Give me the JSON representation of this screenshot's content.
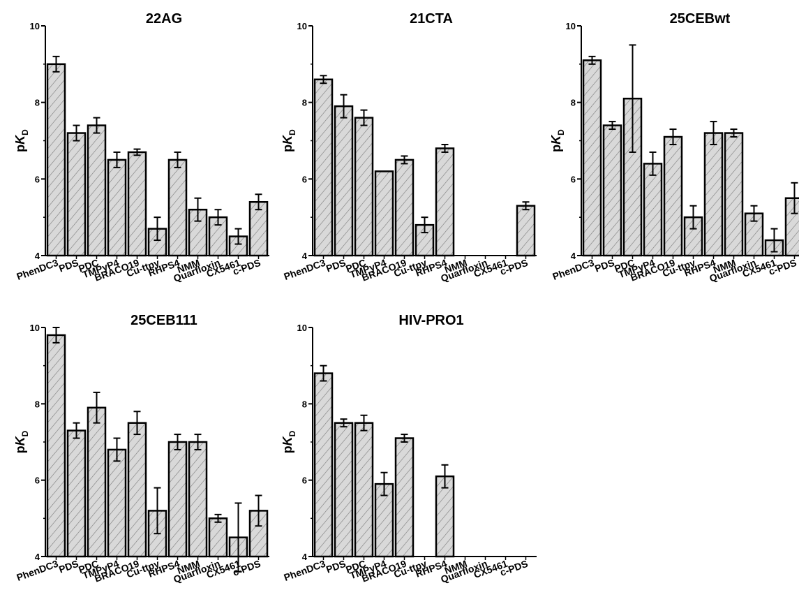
{
  "colors": {
    "bar_fill": "#d9d9d9",
    "hatch": "#7a7a7a",
    "stroke": "#000000"
  },
  "chart_data": [
    {
      "type": "bar",
      "title": "22AG",
      "ylabel": "pKD",
      "ylim": [
        4,
        10
      ],
      "yticks": [
        "4",
        "6",
        "8",
        "10"
      ],
      "categories": [
        "PhenDC3",
        "PDS",
        "PDC",
        "TMPyP4",
        "BRACO19",
        "Cu-ttpy",
        "RHPS4",
        "NMM",
        "Quarfloxin",
        "CX5461",
        "c-PDS"
      ],
      "values": [
        9.0,
        7.2,
        7.4,
        6.5,
        6.7,
        4.7,
        6.5,
        5.2,
        5.0,
        4.5,
        5.4
      ],
      "errors": [
        0.2,
        0.2,
        0.2,
        0.2,
        0.08,
        0.3,
        0.2,
        0.3,
        0.2,
        0.2,
        0.2
      ]
    },
    {
      "type": "bar",
      "title": "21CTA",
      "ylabel": "pKD",
      "ylim": [
        4,
        10
      ],
      "yticks": [
        "4",
        "6",
        "8",
        "10"
      ],
      "categories": [
        "PhenDC3",
        "PDS",
        "PDC",
        "TMPyP4",
        "BRACO19",
        "Cu-ttpy",
        "RHPS4",
        "NMM",
        "Quarfloxin",
        "CX5461",
        "c-PDS"
      ],
      "values": [
        8.6,
        7.9,
        7.6,
        6.2,
        6.5,
        4.8,
        6.8,
        4,
        4,
        4,
        5.3
      ],
      "errors": [
        0.1,
        0.3,
        0.2,
        0,
        0.1,
        0.2,
        0.1,
        0,
        0,
        0,
        0.1
      ]
    },
    {
      "type": "bar",
      "title": "25CEBwt",
      "ylabel": "pKD",
      "ylim": [
        4,
        10
      ],
      "yticks": [
        "4",
        "6",
        "8",
        "10"
      ],
      "categories": [
        "PhenDC3",
        "PDS",
        "PDC",
        "TMPyP4",
        "BRACO19",
        "Cu-ttpy",
        "RHPS4",
        "NMM",
        "Quarfloxin",
        "CX5461",
        "c-PDS"
      ],
      "values": [
        9.1,
        7.4,
        8.1,
        6.4,
        7.1,
        5.0,
        7.2,
        7.2,
        5.1,
        4.4,
        5.5
      ],
      "errors": [
        0.1,
        0.1,
        1.4,
        0.3,
        0.2,
        0.3,
        0.3,
        0.1,
        0.2,
        0.3,
        0.4
      ]
    },
    {
      "type": "bar",
      "title": "25CEB111",
      "ylabel": "pKD",
      "ylim": [
        4,
        10
      ],
      "yticks": [
        "4",
        "6",
        "8",
        "10"
      ],
      "categories": [
        "PhenDC3",
        "PDS",
        "PDC",
        "TMPyP4",
        "BRACO19",
        "Cu-ttpy",
        "RHPS4",
        "NMM",
        "Quarfloxin",
        "CX5461",
        "c-PDS"
      ],
      "values": [
        9.8,
        7.3,
        7.9,
        6.8,
        7.5,
        5.2,
        7.0,
        7.0,
        5.0,
        4.5,
        5.2
      ],
      "errors": [
        0.2,
        0.2,
        0.4,
        0.3,
        0.3,
        0.6,
        0.2,
        0.2,
        0.1,
        0.9,
        0.4
      ]
    },
    {
      "type": "bar",
      "title": "HIV-PRO1",
      "ylabel": "pKD",
      "ylim": [
        4,
        10
      ],
      "yticks": [
        "4",
        "6",
        "8",
        "10"
      ],
      "categories": [
        "PhenDC3",
        "PDS",
        "PDC",
        "TMPyP4",
        "BRACO19",
        "Cu-ttpy",
        "RHPS4",
        "NMM",
        "Quarfloxin",
        "CX5461",
        "c-PDS"
      ],
      "values": [
        8.8,
        7.5,
        7.5,
        5.9,
        7.1,
        4,
        6.1,
        4,
        4,
        4,
        4
      ],
      "errors": [
        0.2,
        0.1,
        0.2,
        0.3,
        0.1,
        0,
        0.3,
        0,
        0,
        0,
        0
      ]
    }
  ]
}
